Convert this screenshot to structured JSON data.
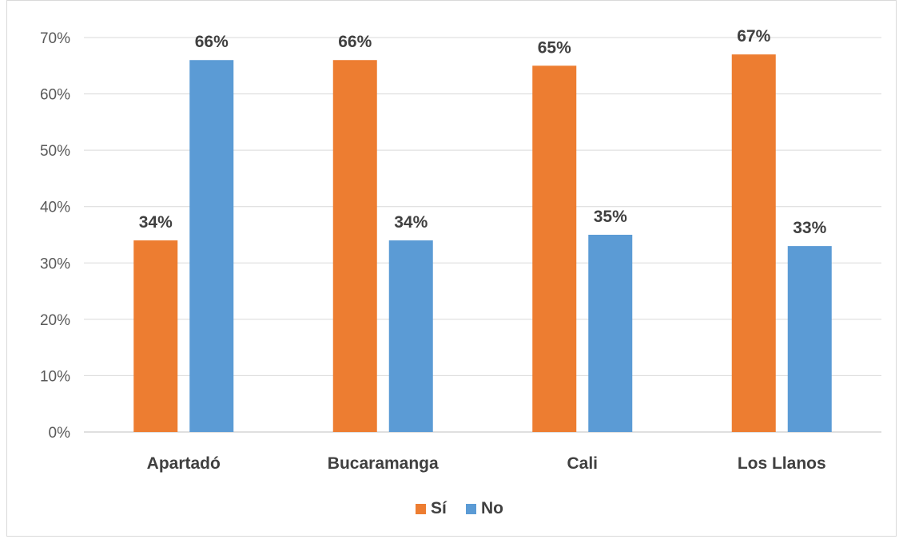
{
  "chart_data": {
    "type": "bar",
    "categories": [
      "Apartadó",
      "Bucaramanga",
      "Cali",
      "Los Llanos"
    ],
    "series": [
      {
        "name": "Sí",
        "color": "#ED7D31",
        "values": [
          34,
          66,
          65,
          67
        ],
        "labels": [
          "34%",
          "66%",
          "65%",
          "67%"
        ]
      },
      {
        "name": "No",
        "color": "#5B9BD5",
        "values": [
          66,
          34,
          35,
          33
        ],
        "labels": [
          "66%",
          "34%",
          "35%",
          "33%"
        ]
      }
    ],
    "ylim": [
      0,
      70
    ],
    "yticks": [
      0,
      10,
      20,
      30,
      40,
      50,
      60,
      70
    ],
    "ytick_labels": [
      "0%",
      "10%",
      "20%",
      "30%",
      "40%",
      "50%",
      "60%",
      "70%"
    ],
    "grid": true,
    "legend_position": "bottom"
  }
}
